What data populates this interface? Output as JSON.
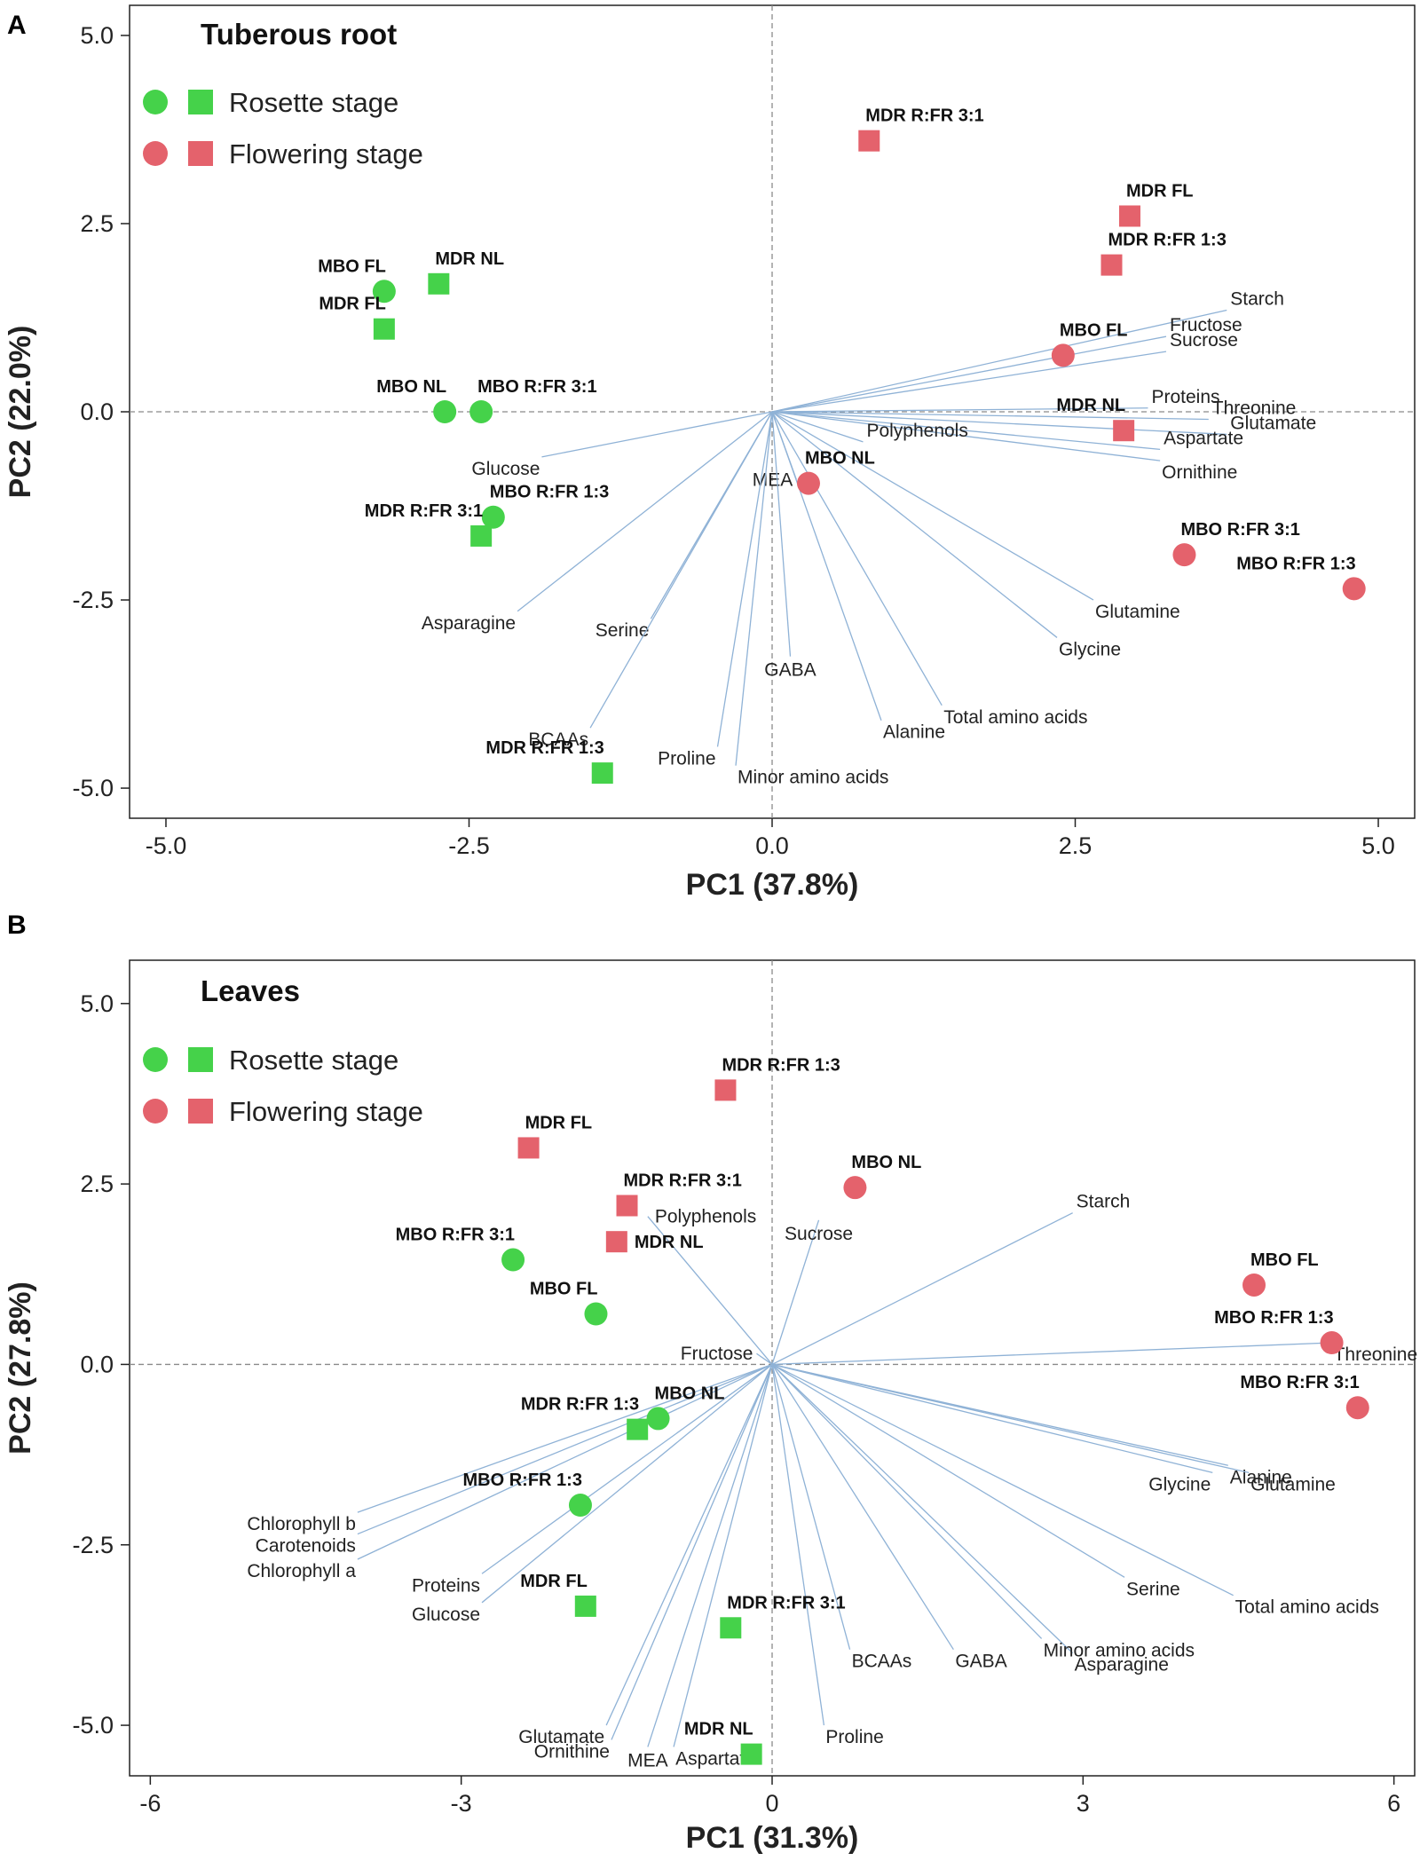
{
  "legend": {
    "rosette_label": "Rosette stage",
    "flowering_label": "Flowering stage",
    "rosette_color": "#45d24a",
    "flowering_color": "#e4626c"
  },
  "chart_data": [
    {
      "type": "scatter",
      "panel_letter": "A",
      "title": "Tuberous root",
      "xlabel": "PC1 (37.8%)",
      "ylabel": "PC2 (22.0%)",
      "xlim": [
        -5.3,
        5.3
      ],
      "ylim": [
        -5.4,
        5.4
      ],
      "xticks": [
        -5.0,
        -2.5,
        0.0,
        2.5,
        5.0
      ],
      "xtick_labels": [
        "-5.0",
        "-2.5",
        "0.0",
        "2.5",
        "5.0"
      ],
      "yticks": [
        5.0,
        2.5,
        0.0,
        -2.5,
        -5.0
      ],
      "ytick_labels": [
        "5.0",
        "2.5",
        "0.0",
        "-2.5",
        "-5.0"
      ],
      "points": [
        {
          "label": "MBO FL",
          "x": -3.2,
          "y": 1.6,
          "stage": "rosette",
          "shape": "circle",
          "label_pos": "above-left"
        },
        {
          "label": "MDR NL",
          "x": -2.75,
          "y": 1.7,
          "stage": "rosette",
          "shape": "square",
          "label_pos": "above-right"
        },
        {
          "label": "MDR FL",
          "x": -3.2,
          "y": 1.1,
          "stage": "rosette",
          "shape": "square",
          "label_pos": "above-left"
        },
        {
          "label": "MBO NL",
          "x": -2.7,
          "y": 0.0,
          "stage": "rosette",
          "shape": "circle",
          "label_pos": "above-left"
        },
        {
          "label": "MBO R:FR 3:1",
          "x": -2.4,
          "y": 0.0,
          "stage": "rosette",
          "shape": "circle",
          "label_pos": "above-right"
        },
        {
          "label": "MBO R:FR 1:3",
          "x": -2.3,
          "y": -1.4,
          "stage": "rosette",
          "shape": "circle",
          "label_pos": "above-right"
        },
        {
          "label": "MDR R:FR 3:1",
          "x": -2.4,
          "y": -1.65,
          "stage": "rosette",
          "shape": "square",
          "label_pos": "above-left"
        },
        {
          "label": "MDR R:FR 1:3",
          "x": -1.4,
          "y": -4.8,
          "stage": "rosette",
          "shape": "square",
          "label_pos": "above-left"
        },
        {
          "label": "MDR R:FR 3:1",
          "x": 0.8,
          "y": 3.6,
          "stage": "flowering",
          "shape": "square",
          "label_pos": "above-right"
        },
        {
          "label": "MDR FL",
          "x": 2.95,
          "y": 2.6,
          "stage": "flowering",
          "shape": "square",
          "label_pos": "above-right"
        },
        {
          "label": "MDR R:FR 1:3",
          "x": 2.8,
          "y": 1.95,
          "stage": "flowering",
          "shape": "square",
          "label_pos": "above-right"
        },
        {
          "label": "MBO FL",
          "x": 2.4,
          "y": 0.75,
          "stage": "flowering",
          "shape": "circle",
          "label_pos": "above-right"
        },
        {
          "label": "MDR NL",
          "x": 2.9,
          "y": -0.25,
          "stage": "flowering",
          "shape": "square",
          "label_pos": "above-left"
        },
        {
          "label": "MBO NL",
          "x": 0.3,
          "y": -0.95,
          "stage": "flowering",
          "shape": "circle",
          "label_pos": "above-right"
        },
        {
          "label": "MBO R:FR 3:1",
          "x": 3.4,
          "y": -1.9,
          "stage": "flowering",
          "shape": "circle",
          "label_pos": "above-right"
        },
        {
          "label": "MBO R:FR 1:3",
          "x": 4.8,
          "y": -2.35,
          "stage": "flowering",
          "shape": "circle",
          "label_pos": "above-left"
        }
      ],
      "loadings": [
        {
          "label": "Starch",
          "x": 3.75,
          "y": 1.35,
          "label_pos": "above-right"
        },
        {
          "label": "Fructose",
          "x": 3.25,
          "y": 1.0,
          "label_pos": "above-right"
        },
        {
          "label": "Sucrose",
          "x": 3.25,
          "y": 0.8,
          "label_pos": "above-right"
        },
        {
          "label": "Proteins",
          "x": 3.1,
          "y": 0.05,
          "label_pos": "above-right"
        },
        {
          "label": "Threonine",
          "x": 3.6,
          "y": -0.1,
          "label_pos": "above-right"
        },
        {
          "label": "Glutamate",
          "x": 3.75,
          "y": -0.3,
          "label_pos": "above-right"
        },
        {
          "label": "Aspartate",
          "x": 3.2,
          "y": -0.5,
          "label_pos": "above-right"
        },
        {
          "label": "Ornithine",
          "x": 3.2,
          "y": -0.65,
          "label_pos": "below-right"
        },
        {
          "label": "Polyphenols",
          "x": 0.75,
          "y": -0.4,
          "label_pos": "above-right"
        },
        {
          "label": "MEA",
          "x": 0.2,
          "y": -0.9,
          "label_pos": "left"
        },
        {
          "label": "Glutamine",
          "x": 2.65,
          "y": -2.5,
          "label_pos": "below-right"
        },
        {
          "label": "Glycine",
          "x": 2.35,
          "y": -3.0,
          "label_pos": "below-right"
        },
        {
          "label": "Total amino acids",
          "x": 1.4,
          "y": -3.9,
          "label_pos": "below-right"
        },
        {
          "label": "Alanine",
          "x": 0.9,
          "y": -4.1,
          "label_pos": "below-right"
        },
        {
          "label": "GABA",
          "x": 0.15,
          "y": -3.25,
          "label_pos": "below"
        },
        {
          "label": "Minor amino acids",
          "x": -0.3,
          "y": -4.7,
          "label_pos": "below-right"
        },
        {
          "label": "Proline",
          "x": -0.45,
          "y": -4.45,
          "label_pos": "below-left"
        },
        {
          "label": "Serine",
          "x": -1.0,
          "y": -2.75,
          "label_pos": "below-left"
        },
        {
          "label": "BCAAs",
          "x": -1.5,
          "y": -4.2,
          "label_pos": "below-left"
        },
        {
          "label": "Asparagine",
          "x": -2.1,
          "y": -2.65,
          "label_pos": "below-left"
        },
        {
          "label": "Glucose",
          "x": -1.9,
          "y": -0.6,
          "label_pos": "below-left"
        }
      ]
    },
    {
      "type": "scatter",
      "panel_letter": "B",
      "title": "Leaves",
      "xlabel": "PC1 (31.3%)",
      "ylabel": "PC2 (27.8%)",
      "xlim": [
        -6.2,
        6.2
      ],
      "ylim": [
        -5.7,
        5.6
      ],
      "xticks": [
        -6,
        -3,
        0,
        3,
        6
      ],
      "xtick_labels": [
        "-6",
        "-3",
        "0",
        "3",
        "6"
      ],
      "yticks": [
        5.0,
        2.5,
        0.0,
        -2.5,
        -5.0
      ],
      "ytick_labels": [
        "5.0",
        "2.5",
        "0.0",
        "-2.5",
        "-5.0"
      ],
      "points": [
        {
          "label": "MDR R:FR 1:3",
          "x": -0.45,
          "y": 3.8,
          "stage": "flowering",
          "shape": "square",
          "label_pos": "above-right"
        },
        {
          "label": "MDR FL",
          "x": -2.35,
          "y": 3.0,
          "stage": "flowering",
          "shape": "square",
          "label_pos": "above-right"
        },
        {
          "label": "MDR R:FR 3:1",
          "x": -1.4,
          "y": 2.2,
          "stage": "flowering",
          "shape": "square",
          "label_pos": "above-right"
        },
        {
          "label": "MDR NL",
          "x": -1.5,
          "y": 1.7,
          "stage": "flowering",
          "shape": "square",
          "label_pos": "right"
        },
        {
          "label": "MBO NL",
          "x": 0.8,
          "y": 2.45,
          "stage": "flowering",
          "shape": "circle",
          "label_pos": "above-right"
        },
        {
          "label": "MBO FL",
          "x": 4.65,
          "y": 1.1,
          "stage": "flowering",
          "shape": "circle",
          "label_pos": "above-right"
        },
        {
          "label": "MBO R:FR 1:3",
          "x": 5.4,
          "y": 0.3,
          "stage": "flowering",
          "shape": "circle",
          "label_pos": "above-left"
        },
        {
          "label": "MBO R:FR 3:1",
          "x": 5.65,
          "y": -0.6,
          "stage": "flowering",
          "shape": "circle",
          "label_pos": "above-left"
        },
        {
          "label": "MBO R:FR 3:1",
          "x": -2.5,
          "y": 1.45,
          "stage": "rosette",
          "shape": "circle",
          "label_pos": "above-left"
        },
        {
          "label": "MBO FL",
          "x": -1.7,
          "y": 0.7,
          "stage": "rosette",
          "shape": "circle",
          "label_pos": "above-left"
        },
        {
          "label": "MBO NL",
          "x": -1.1,
          "y": -0.75,
          "stage": "rosette",
          "shape": "circle",
          "label_pos": "above-right"
        },
        {
          "label": "MDR R:FR 1:3",
          "x": -1.3,
          "y": -0.9,
          "stage": "rosette",
          "shape": "square",
          "label_pos": "above-left"
        },
        {
          "label": "MBO R:FR 1:3",
          "x": -1.85,
          "y": -1.95,
          "stage": "rosette",
          "shape": "circle",
          "label_pos": "above-left"
        },
        {
          "label": "MDR FL",
          "x": -1.8,
          "y": -3.35,
          "stage": "rosette",
          "shape": "square",
          "label_pos": "above-left"
        },
        {
          "label": "MDR R:FR 3:1",
          "x": -0.4,
          "y": -3.65,
          "stage": "rosette",
          "shape": "square",
          "label_pos": "above-right"
        },
        {
          "label": "MDR NL",
          "x": -0.2,
          "y": -5.4,
          "stage": "rosette",
          "shape": "square",
          "label_pos": "above-left"
        }
      ],
      "loadings": [
        {
          "label": "Starch",
          "x": 2.9,
          "y": 2.1,
          "label_pos": "above-right"
        },
        {
          "label": "Sucrose",
          "x": 0.45,
          "y": 2.0,
          "label_pos": "below"
        },
        {
          "label": "Polyphenols",
          "x": -1.2,
          "y": 2.05,
          "label_pos": "right"
        },
        {
          "label": "Fructose",
          "x": -0.15,
          "y": 0.15,
          "label_pos": "left"
        },
        {
          "label": "Threonine",
          "x": 5.4,
          "y": 0.3,
          "label_pos": "below-right"
        },
        {
          "label": "Alanine",
          "x": 4.4,
          "y": -1.4,
          "label_pos": "below-right"
        },
        {
          "label": "Glutamine",
          "x": 4.6,
          "y": -1.5,
          "label_pos": "below-right"
        },
        {
          "label": "Glycine",
          "x": 4.25,
          "y": -1.5,
          "label_pos": "below-left"
        },
        {
          "label": "Total amino acids",
          "x": 4.45,
          "y": -3.2,
          "label_pos": "below-right"
        },
        {
          "label": "Serine",
          "x": 3.4,
          "y": -2.95,
          "label_pos": "below-right"
        },
        {
          "label": "Asparagine",
          "x": 2.9,
          "y": -4.0,
          "label_pos": "below-right"
        },
        {
          "label": "Minor amino acids",
          "x": 2.6,
          "y": -3.8,
          "label_pos": "below-right"
        },
        {
          "label": "GABA",
          "x": 1.75,
          "y": -3.95,
          "label_pos": "below-right"
        },
        {
          "label": "BCAAs",
          "x": 0.75,
          "y": -3.95,
          "label_pos": "below-right"
        },
        {
          "label": "Proline",
          "x": 0.5,
          "y": -5.0,
          "label_pos": "below-right"
        },
        {
          "label": "Aspartate",
          "x": -0.95,
          "y": -5.3,
          "label_pos": "below-right"
        },
        {
          "label": "MEA",
          "x": -1.2,
          "y": -5.3,
          "label_pos": "below"
        },
        {
          "label": "Ornithine",
          "x": -1.55,
          "y": -5.2,
          "label_pos": "below-left"
        },
        {
          "label": "Glutamate",
          "x": -1.6,
          "y": -5.0,
          "label_pos": "below-left"
        },
        {
          "label": "Glucose",
          "x": -2.8,
          "y": -3.3,
          "label_pos": "below-left"
        },
        {
          "label": "Proteins",
          "x": -2.8,
          "y": -2.9,
          "label_pos": "below-left"
        },
        {
          "label": "Chlorophyll b",
          "x": -4.0,
          "y": -2.05,
          "label_pos": "below-left"
        },
        {
          "label": "Carotenoids",
          "x": -4.0,
          "y": -2.35,
          "label_pos": "below-left"
        },
        {
          "label": "Chlorophyll a",
          "x": -4.0,
          "y": -2.7,
          "label_pos": "below-left"
        }
      ]
    }
  ]
}
